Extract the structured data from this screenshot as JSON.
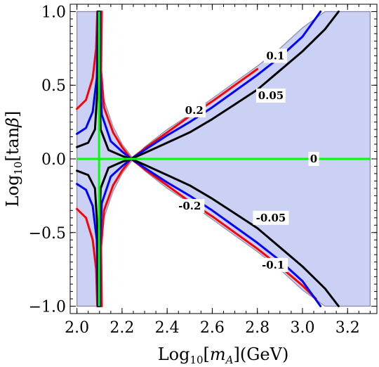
{
  "chart_data": {
    "type": "contour",
    "xlabel": "Log₁₀[mA](GeV)",
    "ylabel": "Log₁₀[tanβ]",
    "xlim": [
      1.97,
      3.33
    ],
    "ylim": [
      -1.05,
      1.05
    ],
    "x_ticks": [
      "2.0",
      "2.2",
      "2.4",
      "2.6",
      "2.8",
      "3.0",
      "3.2"
    ],
    "x_tick_values": [
      2.0,
      2.2,
      2.4,
      2.6,
      2.8,
      3.0,
      3.2
    ],
    "y_ticks": [
      "−1.0",
      "−0.5",
      "0.0",
      "0.5",
      "1.0"
    ],
    "y_tick_values": [
      -1.0,
      -0.5,
      0.0,
      0.5,
      1.0
    ],
    "region": {
      "fill": "#cbd1f4",
      "edge": "#8a8aa8",
      "points": [
        [
          2.0,
          1.0
        ],
        [
          2.088,
          1.0
        ],
        [
          2.093,
          0.72
        ],
        [
          2.1,
          0.6
        ],
        [
          2.12,
          0.4
        ],
        [
          2.16,
          0.22
        ],
        [
          2.2,
          0.1
        ],
        [
          2.25,
          0.0
        ],
        [
          2.3,
          0.08
        ],
        [
          2.4,
          0.2
        ],
        [
          2.5,
          0.3
        ],
        [
          2.6,
          0.41
        ],
        [
          2.7,
          0.52
        ],
        [
          2.8,
          0.63
        ],
        [
          2.9,
          0.75
        ],
        [
          3.0,
          0.89
        ],
        [
          3.1,
          1.0
        ],
        [
          3.3,
          1.0
        ],
        [
          3.3,
          -1.0
        ],
        [
          3.1,
          -1.0
        ],
        [
          3.0,
          -0.89
        ],
        [
          2.9,
          -0.75
        ],
        [
          2.8,
          -0.63
        ],
        [
          2.7,
          -0.52
        ],
        [
          2.6,
          -0.41
        ],
        [
          2.5,
          -0.3
        ],
        [
          2.4,
          -0.2
        ],
        [
          2.3,
          -0.08
        ],
        [
          2.25,
          0.0
        ],
        [
          2.2,
          -0.1
        ],
        [
          2.16,
          -0.22
        ],
        [
          2.12,
          -0.4
        ],
        [
          2.1,
          -0.6
        ],
        [
          2.093,
          -0.72
        ],
        [
          2.088,
          -1.0
        ],
        [
          2.0,
          -1.0
        ]
      ]
    },
    "series": [
      {
        "color": "#ff0000",
        "points": [
          [
            2.24,
            0.0
          ],
          [
            2.3,
            0.07
          ],
          [
            2.4,
            0.18
          ],
          [
            2.5,
            0.29
          ],
          [
            2.6,
            0.39
          ],
          [
            2.7,
            0.5
          ],
          [
            2.8,
            0.61
          ]
        ]
      },
      {
        "color": "#0000ff",
        "points": [
          [
            2.24,
            0.0
          ],
          [
            2.3,
            0.06
          ],
          [
            2.4,
            0.16
          ],
          [
            2.5,
            0.25
          ],
          [
            2.6,
            0.35
          ],
          [
            2.7,
            0.46
          ],
          [
            2.8,
            0.57
          ],
          [
            2.9,
            0.69
          ],
          [
            3.0,
            0.83
          ],
          [
            3.08,
            1.0
          ]
        ]
      },
      {
        "color": "#000000",
        "points": [
          [
            2.24,
            0.0
          ],
          [
            2.3,
            0.04
          ],
          [
            2.4,
            0.11
          ],
          [
            2.5,
            0.18
          ],
          [
            2.6,
            0.27
          ],
          [
            2.7,
            0.37
          ],
          [
            2.8,
            0.47
          ],
          [
            2.9,
            0.6
          ],
          [
            3.0,
            0.73
          ],
          [
            3.1,
            0.88
          ],
          [
            3.16,
            1.0
          ]
        ]
      },
      {
        "color": "#ff0000",
        "points": [
          [
            2.24,
            0.0
          ],
          [
            2.3,
            -0.07
          ],
          [
            2.4,
            -0.18
          ],
          [
            2.5,
            -0.29
          ],
          [
            2.6,
            -0.39
          ],
          [
            2.7,
            -0.5
          ],
          [
            2.8,
            -0.61
          ],
          [
            2.9,
            -0.73
          ],
          [
            3.0,
            -0.86
          ],
          [
            3.06,
            -0.95
          ]
        ]
      },
      {
        "color": "#0000ff",
        "points": [
          [
            2.24,
            0.0
          ],
          [
            2.3,
            -0.06
          ],
          [
            2.4,
            -0.16
          ],
          [
            2.5,
            -0.25
          ],
          [
            2.6,
            -0.35
          ],
          [
            2.7,
            -0.46
          ],
          [
            2.8,
            -0.57
          ],
          [
            2.9,
            -0.69
          ],
          [
            3.0,
            -0.83
          ],
          [
            3.08,
            -1.0
          ]
        ]
      },
      {
        "color": "#000000",
        "points": [
          [
            2.24,
            0.0
          ],
          [
            2.3,
            -0.04
          ],
          [
            2.4,
            -0.11
          ],
          [
            2.5,
            -0.18
          ],
          [
            2.6,
            -0.27
          ],
          [
            2.7,
            -0.37
          ],
          [
            2.8,
            -0.47
          ],
          [
            2.9,
            -0.6
          ],
          [
            3.0,
            -0.73
          ],
          [
            3.1,
            -0.88
          ],
          [
            3.16,
            -1.0
          ]
        ]
      },
      {
        "color": "#ff0000",
        "points": [
          [
            2.0,
            0.34
          ],
          [
            2.04,
            0.4
          ],
          [
            2.07,
            0.55
          ],
          [
            2.085,
            0.75
          ],
          [
            2.09,
            1.0
          ]
        ]
      },
      {
        "color": "#0000ff",
        "points": [
          [
            2.0,
            0.17
          ],
          [
            2.04,
            0.21
          ],
          [
            2.07,
            0.32
          ],
          [
            2.088,
            0.55
          ],
          [
            2.093,
            1.0
          ]
        ]
      },
      {
        "color": "#000000",
        "points": [
          [
            2.0,
            0.08
          ],
          [
            2.05,
            0.11
          ],
          [
            2.08,
            0.2
          ],
          [
            2.092,
            0.5
          ],
          [
            2.095,
            1.0
          ]
        ]
      },
      {
        "color": "#ff0000",
        "points": [
          [
            2.0,
            -0.34
          ],
          [
            2.04,
            -0.4
          ],
          [
            2.07,
            -0.55
          ],
          [
            2.085,
            -0.75
          ],
          [
            2.09,
            -1.0
          ]
        ]
      },
      {
        "color": "#0000ff",
        "points": [
          [
            2.0,
            -0.17
          ],
          [
            2.04,
            -0.21
          ],
          [
            2.07,
            -0.32
          ],
          [
            2.088,
            -0.55
          ],
          [
            2.093,
            -1.0
          ]
        ]
      },
      {
        "color": "#000000",
        "points": [
          [
            2.0,
            -0.08
          ],
          [
            2.05,
            -0.11
          ],
          [
            2.08,
            -0.2
          ],
          [
            2.092,
            -0.5
          ],
          [
            2.095,
            -1.0
          ]
        ]
      },
      {
        "color": "#ff0000",
        "points": [
          [
            2.11,
            1.0
          ],
          [
            2.107,
            0.6
          ],
          [
            2.12,
            0.35
          ],
          [
            2.16,
            0.18
          ],
          [
            2.2,
            0.08
          ],
          [
            2.24,
            0.0
          ],
          [
            2.2,
            -0.08
          ],
          [
            2.16,
            -0.18
          ],
          [
            2.12,
            -0.35
          ],
          [
            2.107,
            -0.6
          ],
          [
            2.11,
            -1.0
          ]
        ]
      },
      {
        "color": "#0000ff",
        "points": [
          [
            2.103,
            1.0
          ],
          [
            2.102,
            0.6
          ],
          [
            2.11,
            0.3
          ],
          [
            2.15,
            0.12
          ],
          [
            2.2,
            0.05
          ],
          [
            2.24,
            0.0
          ],
          [
            2.2,
            -0.05
          ],
          [
            2.15,
            -0.12
          ],
          [
            2.11,
            -0.3
          ],
          [
            2.102,
            -0.6
          ],
          [
            2.103,
            -1.0
          ]
        ]
      },
      {
        "color": "#000000",
        "points": [
          [
            2.099,
            1.0
          ],
          [
            2.099,
            0.5
          ],
          [
            2.105,
            0.2
          ],
          [
            2.14,
            0.06
          ],
          [
            2.2,
            0.02
          ],
          [
            2.24,
            0.0
          ],
          [
            2.2,
            -0.02
          ],
          [
            2.14,
            -0.06
          ],
          [
            2.105,
            -0.2
          ],
          [
            2.099,
            -0.5
          ],
          [
            2.099,
            -1.0
          ]
        ]
      }
    ],
    "zero_lines": {
      "color": "#00ff00",
      "horizontal": {
        "y": 0.0,
        "x_range": [
          2.0,
          3.3
        ]
      },
      "vertical": {
        "x": 2.098,
        "y_range": [
          -1.0,
          1.0
        ]
      }
    },
    "contour_labels": [
      {
        "text": "0.1",
        "x": 2.88,
        "y": 0.7
      },
      {
        "text": "0.05",
        "x": 2.86,
        "y": 0.43
      },
      {
        "text": "0.2",
        "x": 2.52,
        "y": 0.33
      },
      {
        "text": "0",
        "x": 3.05,
        "y": 0.0
      },
      {
        "text": "-0.2",
        "x": 2.5,
        "y": -0.32
      },
      {
        "text": "-0.05",
        "x": 2.86,
        "y": -0.4
      },
      {
        "text": "-0.1",
        "x": 2.87,
        "y": -0.72
      }
    ]
  }
}
